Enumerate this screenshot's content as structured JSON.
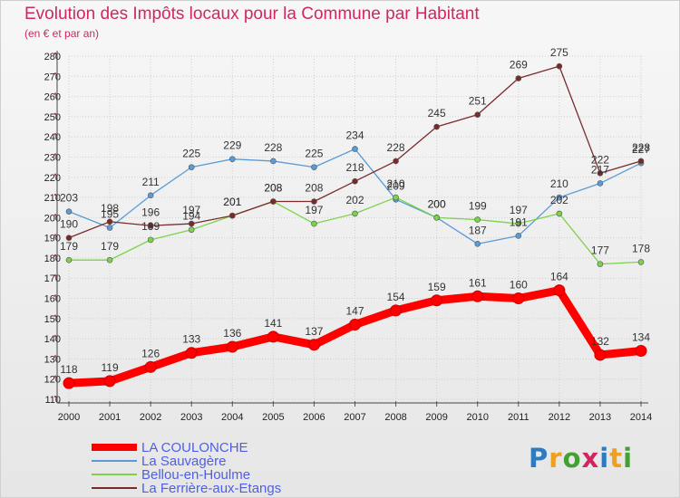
{
  "header": {
    "title": "Evolution des Impôts locaux pour la Commune par Habitant",
    "subtitle": "(en € et par an)"
  },
  "logo": {
    "text": "Proxiti",
    "colors": [
      "#2e7bc4",
      "#f0a020",
      "#44a033",
      "#d22660",
      "#2e7bc4",
      "#f0a020",
      "#44a033"
    ]
  },
  "chart_data": {
    "type": "line",
    "x": [
      2000,
      2001,
      2002,
      2003,
      2004,
      2005,
      2006,
      2007,
      2008,
      2009,
      2010,
      2011,
      2012,
      2013,
      2014
    ],
    "ylim": [
      110,
      280
    ],
    "yticks": [
      110,
      120,
      130,
      140,
      150,
      160,
      170,
      180,
      190,
      200,
      210,
      220,
      230,
      240,
      250,
      260,
      270,
      280
    ],
    "grid": true,
    "legend_position": "bottom-left",
    "series": [
      {
        "name": "La Sauvagère",
        "color": "#5b9bd5",
        "values": [
          203,
          195,
          211,
          225,
          229,
          228,
          225,
          234,
          209,
          200,
          187,
          191,
          210,
          217,
          227
        ]
      },
      {
        "name": "Bellou-en-Houlme",
        "color": "#7bd34a",
        "values": [
          179,
          179,
          189,
          194,
          201,
          208,
          197,
          202,
          210,
          200,
          199,
          197,
          202,
          177,
          178
        ]
      },
      {
        "name": "La Ferrière-aux-Etangs",
        "color": "#7a2a2a",
        "values": [
          190,
          198,
          196,
          197,
          201,
          208,
          208,
          218,
          228,
          245,
          251,
          269,
          275,
          222,
          228
        ]
      },
      {
        "name": "LA COULONCHE",
        "color": "#ff0000",
        "values": [
          118,
          119,
          126,
          133,
          136,
          141,
          137,
          147,
          154,
          159,
          161,
          160,
          164,
          132,
          134
        ]
      }
    ],
    "legend_order": [
      "LA COULONCHE",
      "La Sauvagère",
      "Bellou-en-Houlme",
      "La Ferrière-aux-Etangs"
    ]
  }
}
